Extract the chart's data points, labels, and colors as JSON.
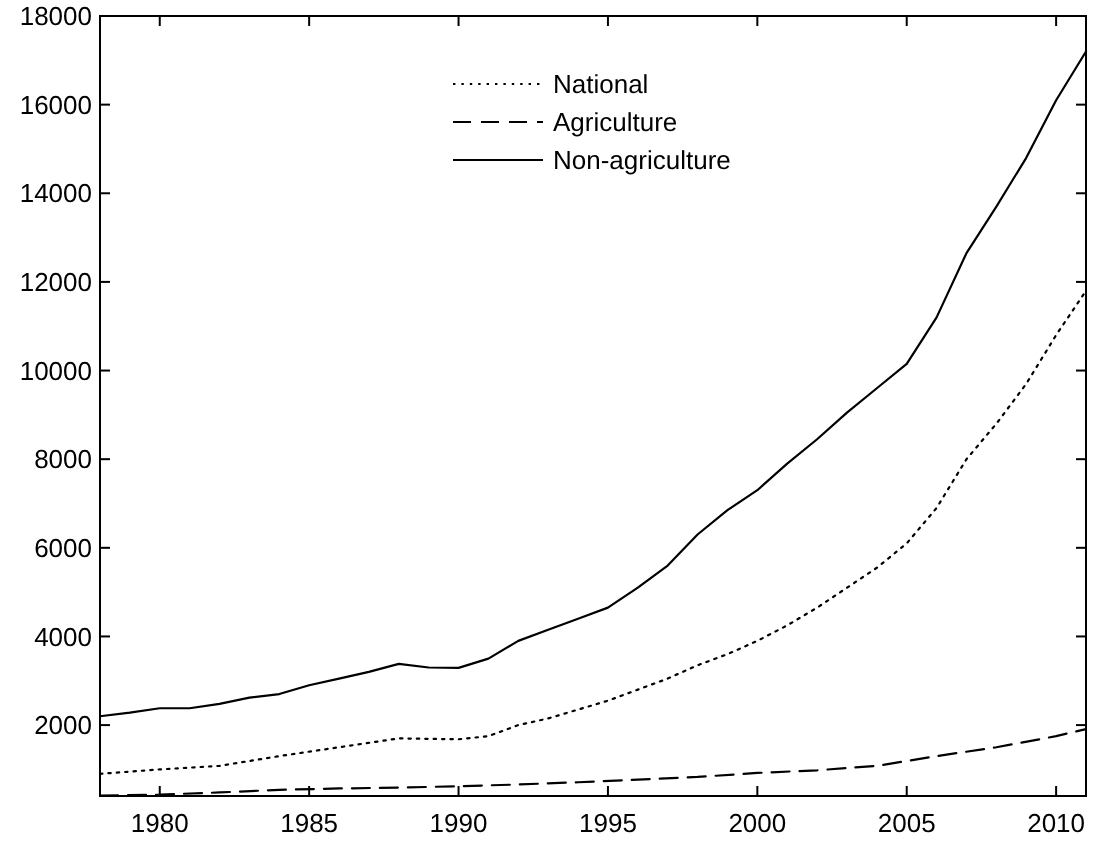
{
  "chart_data": {
    "type": "line",
    "xlim": [
      1978,
      2011
    ],
    "xticks": [
      1980,
      1985,
      1990,
      1995,
      2000,
      2005,
      2010
    ],
    "ylim": [
      400,
      18000
    ],
    "yticks": [
      2000,
      4000,
      6000,
      8000,
      10000,
      12000,
      14000,
      16000,
      18000
    ],
    "grid": false,
    "legend": "top",
    "series": [
      {
        "name": "National",
        "color": "#000000",
        "line_style": "dotted",
        "x": [
          1978,
          1980,
          1982,
          1984,
          1986,
          1988,
          1990,
          1991,
          1992,
          1993,
          1994,
          1995,
          1996,
          1997,
          1998,
          1999,
          2000,
          2001,
          2002,
          2003,
          2004,
          2005,
          2006,
          2007,
          2008,
          2009,
          2010,
          2011
        ],
        "values": [
          900,
          1000,
          1080,
          1300,
          1500,
          1700,
          1680,
          1750,
          2000,
          2150,
          2350,
          2550,
          2800,
          3050,
          3350,
          3600,
          3900,
          4250,
          4650,
          5100,
          5550,
          6100,
          6900,
          8000,
          8800,
          9700,
          10800,
          11800
        ]
      },
      {
        "name": "Agriculture",
        "color": "#000000",
        "line_style": "dashed",
        "x": [
          1978,
          1980,
          1982,
          1984,
          1986,
          1988,
          1990,
          1992,
          1994,
          1996,
          1998,
          2000,
          2002,
          2004,
          2005,
          2006,
          2008,
          2010,
          2011
        ],
        "values": [
          410,
          430,
          480,
          540,
          570,
          590,
          620,
          660,
          710,
          770,
          830,
          920,
          980,
          1080,
          1190,
          1300,
          1500,
          1750,
          1910
        ]
      },
      {
        "name": "Non-agriculture",
        "color": "#000000",
        "line_style": "solid",
        "x": [
          1978,
          1979,
          1980,
          1981,
          1982,
          1983,
          1984,
          1985,
          1986,
          1987,
          1988,
          1989,
          1990,
          1991,
          1992,
          1993,
          1994,
          1995,
          1996,
          1997,
          1998,
          1999,
          2000,
          2001,
          2002,
          2003,
          2004,
          2005,
          2006,
          2007,
          2008,
          2009,
          2010,
          2011
        ],
        "values": [
          2200,
          2280,
          2380,
          2380,
          2480,
          2620,
          2700,
          2900,
          3050,
          3200,
          3380,
          3300,
          3290,
          3500,
          3900,
          4150,
          4400,
          4650,
          5100,
          5600,
          6300,
          6850,
          7300,
          7900,
          8450,
          9050,
          9600,
          10150,
          11200,
          12650,
          13700,
          14800,
          16100,
          17200
        ]
      }
    ]
  }
}
